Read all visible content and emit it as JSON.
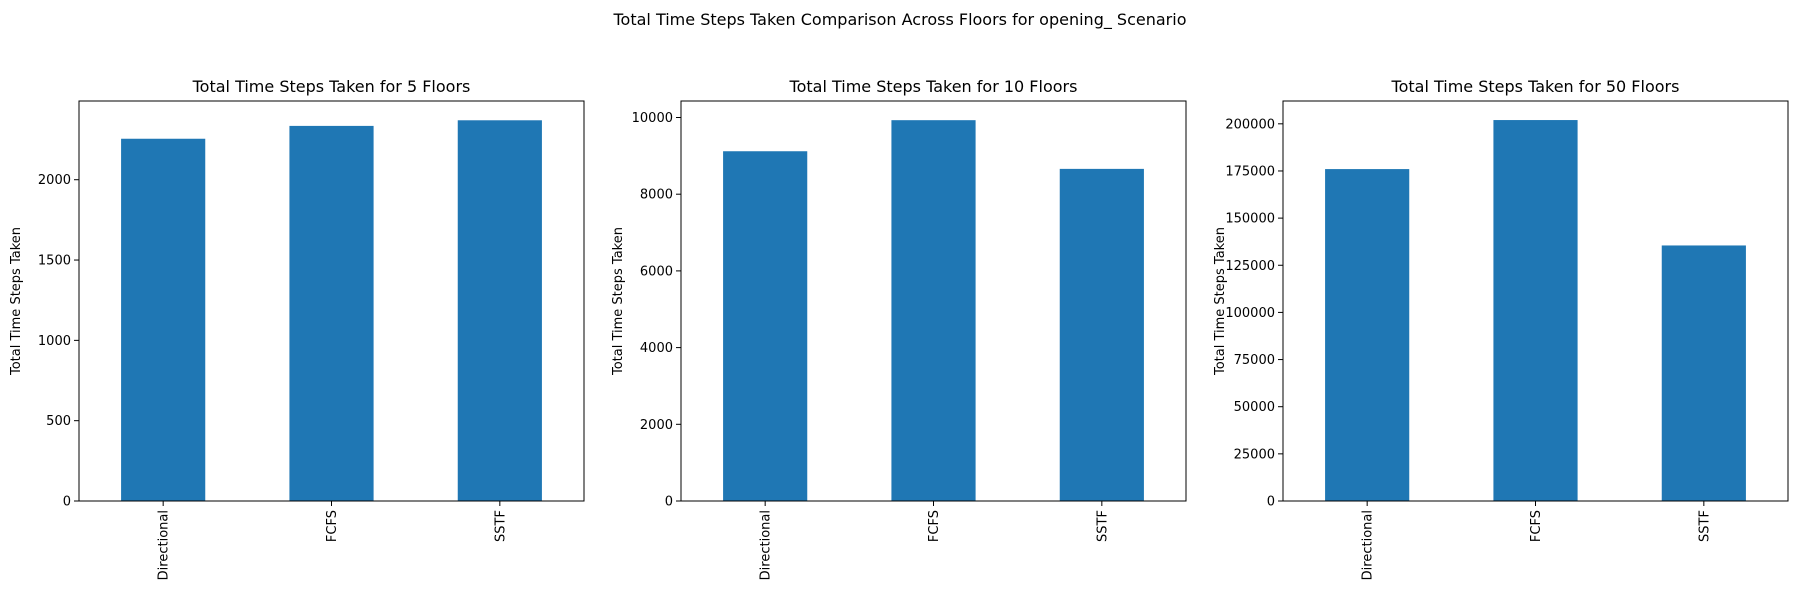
{
  "figure": {
    "suptitle": "Total Time Steps Taken Comparison Across Floors for opening_ Scenario"
  },
  "colors": {
    "bar": "#1f77b4",
    "axes": "#000000",
    "background": "#ffffff"
  },
  "chart_data": [
    {
      "type": "bar",
      "title": "Total Time Steps Taken for 5 Floors",
      "xlabel": "",
      "ylabel": "Total Time Steps Taken",
      "categories": [
        "Directional",
        "FCFS",
        "SSTF"
      ],
      "values": [
        2255,
        2335,
        2370
      ],
      "ylim": [
        0,
        2490
      ],
      "yticks": [
        0,
        500,
        1000,
        1500,
        2000
      ],
      "ytick_labels": [
        "0",
        "500",
        "1000",
        "1500",
        "2000"
      ],
      "grid": false
    },
    {
      "type": "bar",
      "title": "Total Time Steps Taken for 10 Floors",
      "xlabel": "",
      "ylabel": "Total Time Steps Taken",
      "categories": [
        "Directional",
        "FCFS",
        "SSTF"
      ],
      "values": [
        9120,
        9930,
        8660
      ],
      "ylim": [
        0,
        10430
      ],
      "yticks": [
        0,
        2000,
        4000,
        6000,
        8000,
        10000
      ],
      "ytick_labels": [
        "0",
        "2000",
        "4000",
        "6000",
        "8000",
        "10000"
      ],
      "grid": false
    },
    {
      "type": "bar",
      "title": "Total Time Steps Taken for 50 Floors",
      "xlabel": "",
      "ylabel": "Total Time Steps Taken",
      "categories": [
        "Directional",
        "FCFS",
        "SSTF"
      ],
      "values": [
        176000,
        202000,
        135500
      ],
      "ylim": [
        0,
        212100
      ],
      "yticks": [
        0,
        25000,
        50000,
        75000,
        100000,
        125000,
        150000,
        175000,
        200000
      ],
      "ytick_labels": [
        "0",
        "25000",
        "50000",
        "75000",
        "100000",
        "125000",
        "150000",
        "175000",
        "200000"
      ],
      "grid": false
    }
  ]
}
